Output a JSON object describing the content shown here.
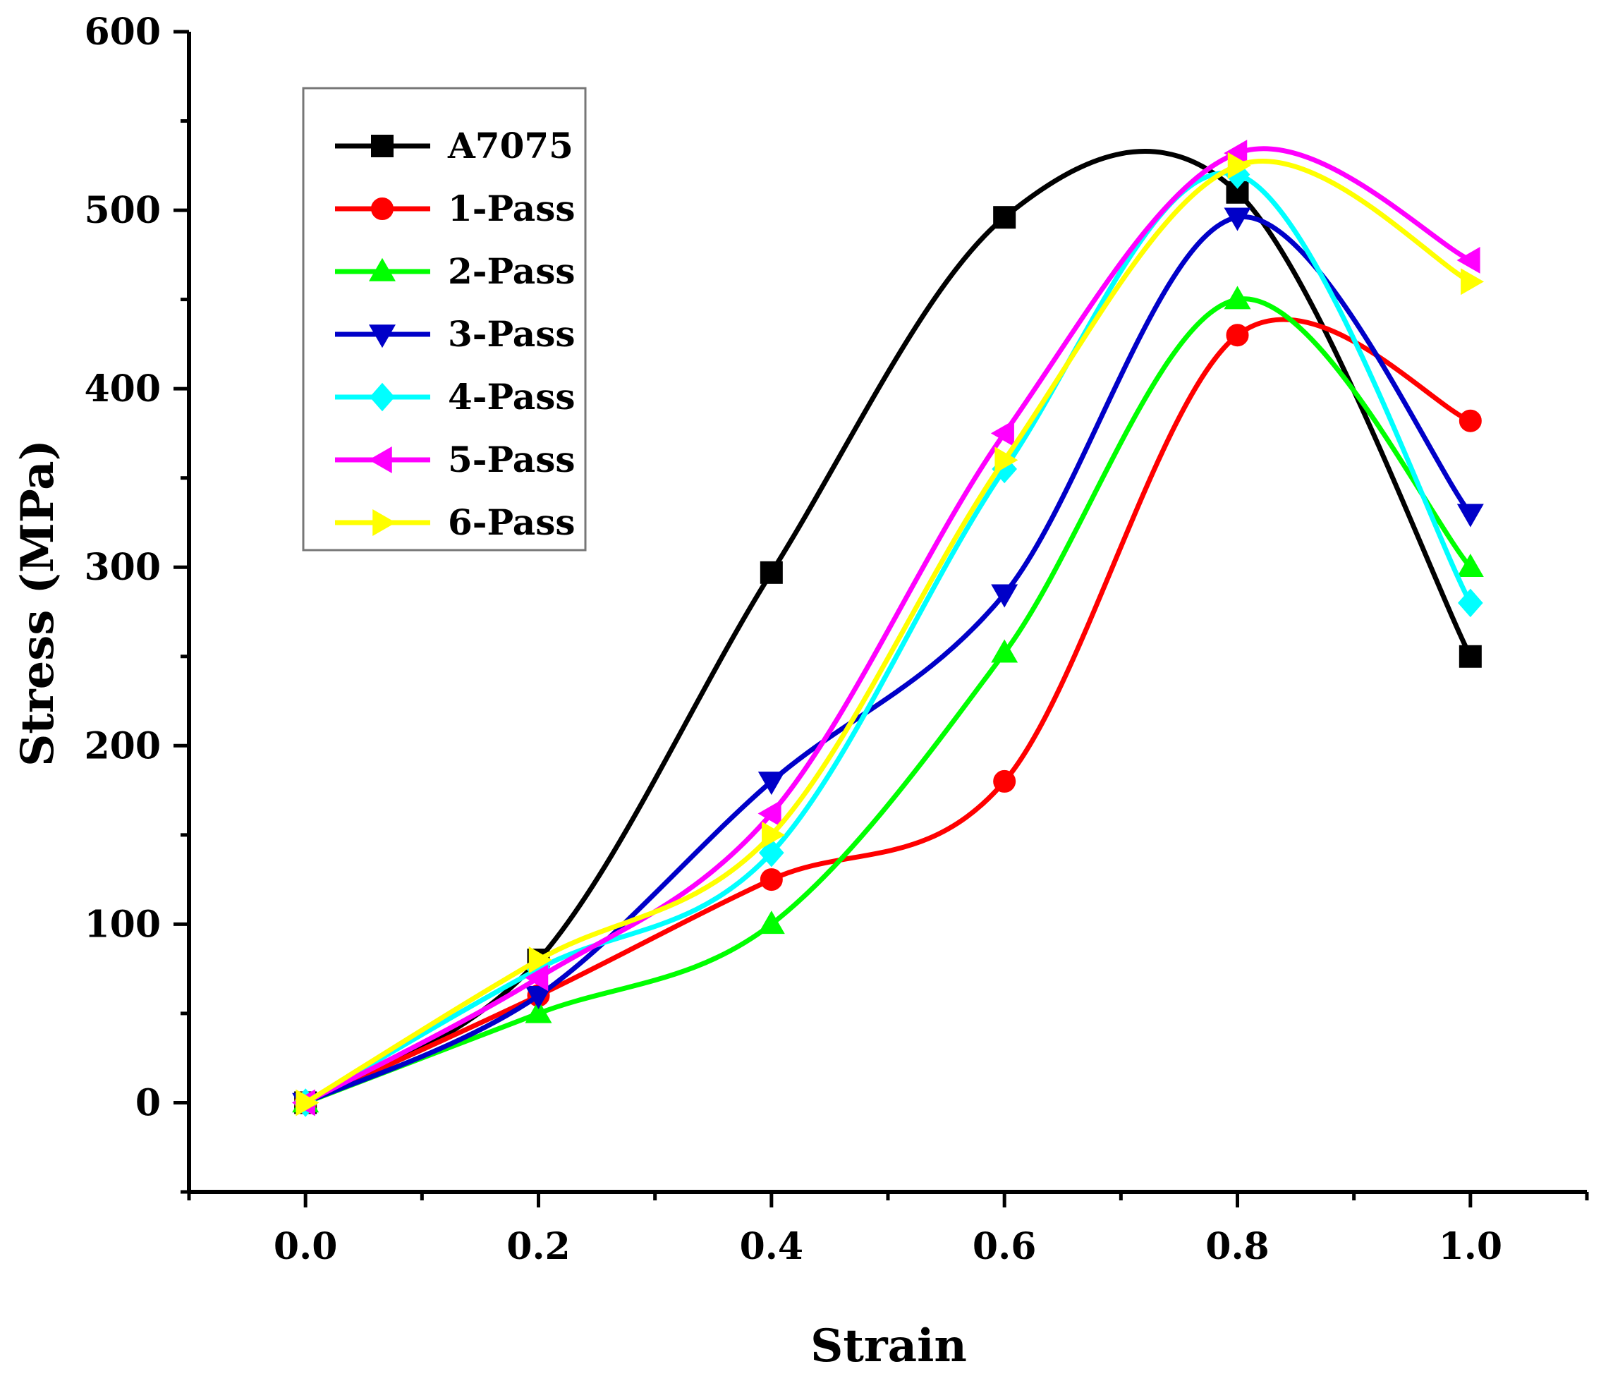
{
  "chart_data": {
    "type": "line",
    "title": "",
    "xlabel": "Strain",
    "ylabel": "Stress (MPa)",
    "xlim": [
      -0.1,
      1.1
    ],
    "ylim": [
      -50,
      600
    ],
    "xticks": [
      "0.0",
      "0.2",
      "0.4",
      "0.6",
      "0.8",
      "1.0"
    ],
    "xtick_values": [
      0.0,
      0.2,
      0.4,
      0.6,
      0.8,
      1.0
    ],
    "yticks": [
      "0",
      "100",
      "200",
      "300",
      "400",
      "500",
      "600"
    ],
    "ytick_values": [
      0,
      100,
      200,
      300,
      400,
      500,
      600
    ],
    "legend_position": "top-left",
    "x": [
      0.0,
      0.2,
      0.4,
      0.6,
      0.8,
      1.0
    ],
    "series": [
      {
        "name": "A7075",
        "color": "#000000",
        "marker": "square",
        "values": [
          0,
          80,
          297,
          496,
          510,
          250
        ]
      },
      {
        "name": "1-Pass",
        "color": "#ff0000",
        "marker": "circle",
        "values": [
          0,
          60,
          125,
          180,
          430,
          382
        ]
      },
      {
        "name": "2-Pass",
        "color": "#00ff00",
        "marker": "triangle-up",
        "values": [
          0,
          50,
          100,
          252,
          450,
          300
        ]
      },
      {
        "name": "3-Pass",
        "color": "#0000c8",
        "marker": "triangle-down",
        "values": [
          0,
          60,
          180,
          285,
          496,
          330
        ]
      },
      {
        "name": "4-Pass",
        "color": "#00ffff",
        "marker": "diamond",
        "values": [
          0,
          75,
          140,
          355,
          520,
          280
        ]
      },
      {
        "name": "5-Pass",
        "color": "#ff00ff",
        "marker": "triangle-left",
        "values": [
          0,
          70,
          162,
          375,
          532,
          472
        ]
      },
      {
        "name": "6-Pass",
        "color": "#ffff00",
        "marker": "triangle-right",
        "values": [
          0,
          80,
          150,
          360,
          525,
          460
        ]
      }
    ]
  }
}
